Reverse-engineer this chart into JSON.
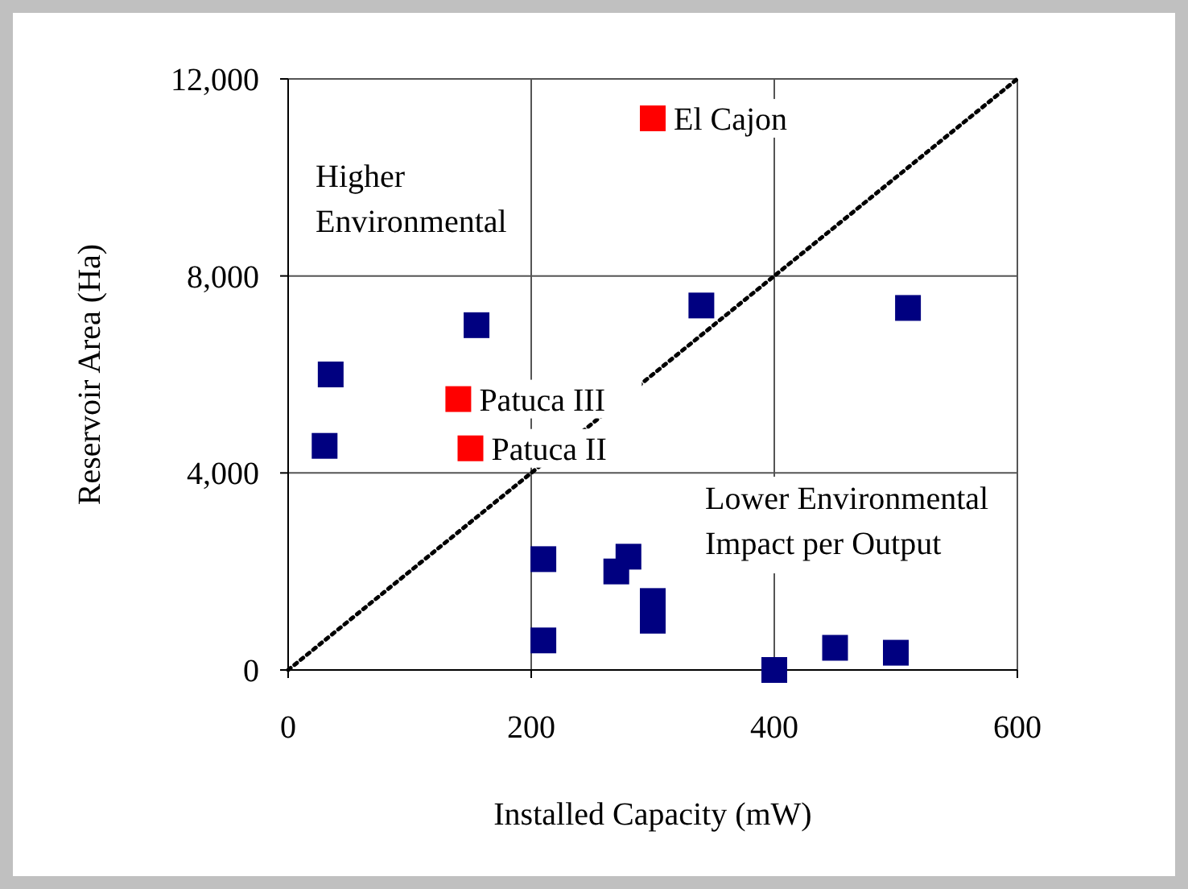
{
  "chart_data": {
    "type": "scatter",
    "xlabel": "Installed Capacity (mW)",
    "ylabel": "Reservoir Area (Ha)",
    "xlim": [
      0,
      600
    ],
    "xticks": [
      0,
      200,
      400,
      600
    ],
    "ylim": [
      0,
      12000
    ],
    "yticks": [
      {
        "value": 0,
        "label": "0"
      },
      {
        "value": 4000,
        "label": "4,000"
      },
      {
        "value": 8000,
        "label": "8,000"
      },
      {
        "value": 12000,
        "label": "12,000"
      }
    ],
    "grid": true,
    "marker": "square",
    "series": [
      {
        "color": "#000080",
        "x": [
          35,
          30,
          155,
          340,
          510,
          210,
          210,
          280,
          270,
          300,
          300,
          400,
          450,
          500
        ],
        "values": [
          6000,
          4550,
          7000,
          7400,
          7350,
          2250,
          600,
          2300,
          2000,
          1400,
          1000,
          0,
          450,
          350
        ]
      },
      {
        "color": "#ff0000",
        "x": [
          300,
          140,
          150
        ],
        "values": [
          11200,
          5500,
          4500
        ]
      },
      {
        "type": "line",
        "color": "#000000",
        "line_style": "dotted",
        "marker": "none",
        "x": [
          0,
          600
        ],
        "values": [
          0,
          12000
        ]
      }
    ],
    "annotations": [
      {
        "text": "El Cajon",
        "x": 300,
        "y": 11200
      },
      {
        "text": "Patuca III",
        "x": 140,
        "y": 5500
      },
      {
        "text": "Patuca II",
        "x": 150,
        "y": 4500
      },
      "Higher Environmental",
      "Lower Environmental Impact per Output"
    ]
  }
}
